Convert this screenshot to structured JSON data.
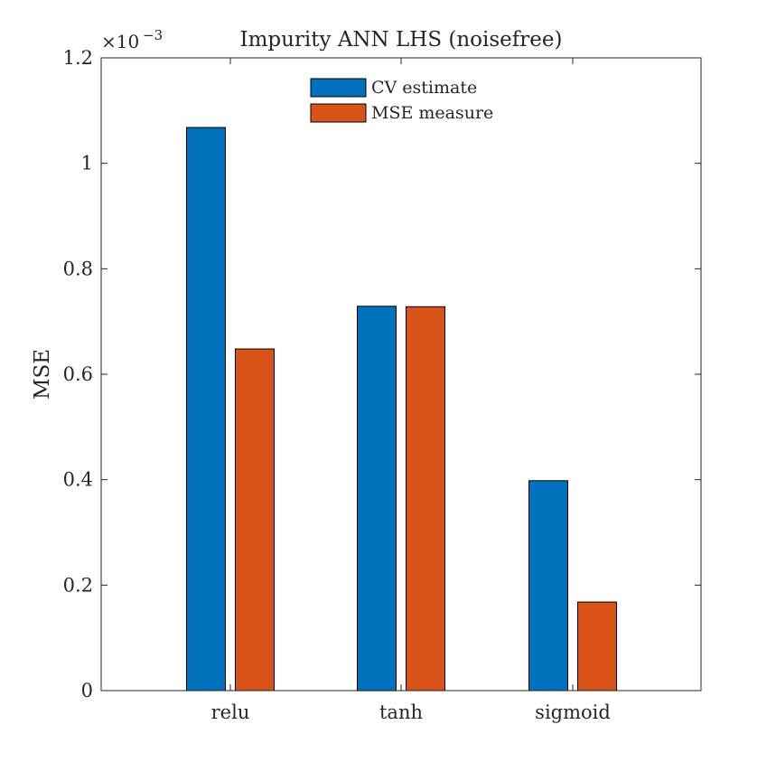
{
  "chart_data": {
    "type": "bar",
    "title": "Impurity ANN LHS (noisefree)",
    "xlabel": "",
    "ylabel": "MSE",
    "categories": [
      "relu",
      "tanh",
      "sigmoid"
    ],
    "series": [
      {
        "name": "CV estimate",
        "color": "#0072bd",
        "values": [
          1.068,
          0.729,
          0.398
        ]
      },
      {
        "name": "MSE measure",
        "color": "#d95319",
        "values": [
          0.648,
          0.728,
          0.168
        ]
      }
    ],
    "ylim": [
      0,
      1.2
    ],
    "yticks": [
      0,
      0.2,
      0.4,
      0.6,
      0.8,
      1,
      1.2
    ],
    "ytick_labels": [
      "0",
      "0.2",
      "0.4",
      "0.6",
      "0.8",
      "1",
      "1.2"
    ],
    "y_exponent": {
      "base": "×10",
      "power": "−3"
    },
    "legend_position": "top-center",
    "grid": false
  }
}
